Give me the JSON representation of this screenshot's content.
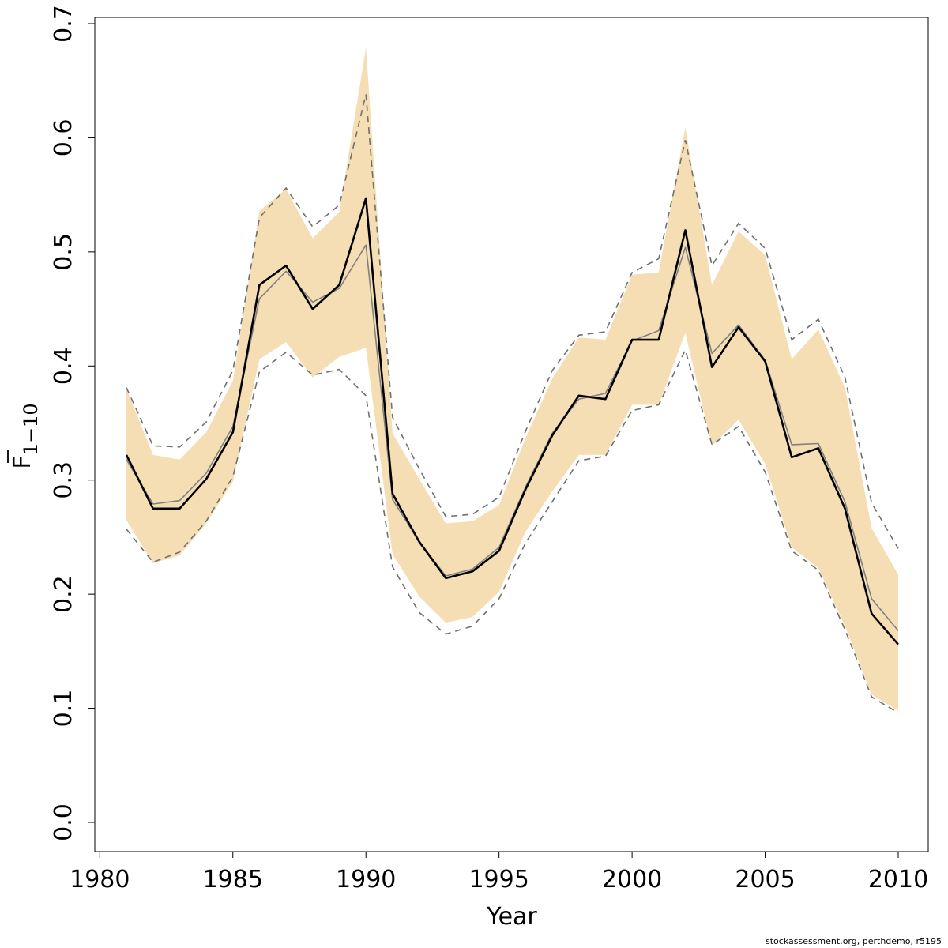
{
  "chart_data": {
    "type": "line",
    "xlabel": "Year",
    "ylabel_main": "F",
    "ylabel_sub": "1−10",
    "xlim": [
      1981,
      2010
    ],
    "ylim": [
      0.0,
      0.7
    ],
    "xticks": [
      1980,
      1985,
      1990,
      1995,
      2000,
      2005,
      2010
    ],
    "yticks": [
      "0.0",
      "0.1",
      "0.2",
      "0.3",
      "0.4",
      "0.5",
      "0.6",
      "0.7"
    ],
    "grid": false,
    "x": [
      1981,
      1982,
      1983,
      1984,
      1985,
      1986,
      1987,
      1988,
      1989,
      1990,
      1991,
      1992,
      1993,
      1994,
      1995,
      1996,
      1997,
      1998,
      1999,
      2000,
      2001,
      2002,
      2003,
      2004,
      2005,
      2006,
      2007,
      2008,
      2009,
      2010
    ],
    "series": [
      {
        "role": "estimate",
        "color": "#000000",
        "values": [
          0.322,
          0.275,
          0.275,
          0.301,
          0.342,
          0.471,
          0.488,
          0.45,
          0.471,
          0.547,
          0.288,
          0.246,
          0.214,
          0.22,
          0.238,
          0.292,
          0.339,
          0.374,
          0.371,
          0.423,
          0.423,
          0.519,
          0.399,
          0.434,
          0.404,
          0.32,
          0.328,
          0.275,
          0.183,
          0.156
        ]
      },
      {
        "role": "estimate-2",
        "color": "#808080",
        "values": [
          0.318,
          0.279,
          0.282,
          0.306,
          0.347,
          0.459,
          0.483,
          0.456,
          0.468,
          0.506,
          0.283,
          0.246,
          0.216,
          0.222,
          0.241,
          0.294,
          0.341,
          0.371,
          0.376,
          0.422,
          0.431,
          0.504,
          0.411,
          0.436,
          0.405,
          0.331,
          0.332,
          0.281,
          0.196,
          0.168
        ]
      }
    ],
    "band": {
      "color": "#f5deb3",
      "upper": [
        0.38,
        0.322,
        0.318,
        0.342,
        0.387,
        0.536,
        0.555,
        0.512,
        0.535,
        0.679,
        0.341,
        0.301,
        0.262,
        0.264,
        0.278,
        0.337,
        0.389,
        0.425,
        0.423,
        0.48,
        0.482,
        0.609,
        0.471,
        0.518,
        0.497,
        0.406,
        0.432,
        0.381,
        0.258,
        0.217
      ],
      "lower": [
        0.265,
        0.227,
        0.234,
        0.262,
        0.299,
        0.406,
        0.421,
        0.39,
        0.408,
        0.416,
        0.235,
        0.198,
        0.175,
        0.18,
        0.202,
        0.255,
        0.29,
        0.322,
        0.322,
        0.366,
        0.366,
        0.429,
        0.33,
        0.353,
        0.314,
        0.241,
        0.223,
        0.172,
        0.112,
        0.098
      ]
    },
    "dashed": {
      "color": "#707070",
      "upper": [
        0.381,
        0.33,
        0.329,
        0.351,
        0.396,
        0.53,
        0.556,
        0.522,
        0.541,
        0.638,
        0.355,
        0.31,
        0.268,
        0.27,
        0.285,
        0.343,
        0.396,
        0.427,
        0.43,
        0.482,
        0.494,
        0.598,
        0.488,
        0.525,
        0.503,
        0.423,
        0.441,
        0.39,
        0.28,
        0.24
      ],
      "lower": [
        0.257,
        0.228,
        0.237,
        0.264,
        0.303,
        0.395,
        0.412,
        0.392,
        0.397,
        0.374,
        0.224,
        0.184,
        0.165,
        0.172,
        0.196,
        0.245,
        0.281,
        0.317,
        0.321,
        0.361,
        0.366,
        0.414,
        0.331,
        0.347,
        0.307,
        0.238,
        0.221,
        0.169,
        0.11,
        0.096
      ]
    }
  },
  "footer": {
    "credit": "stockassessment.org, perthdemo, r5195"
  }
}
